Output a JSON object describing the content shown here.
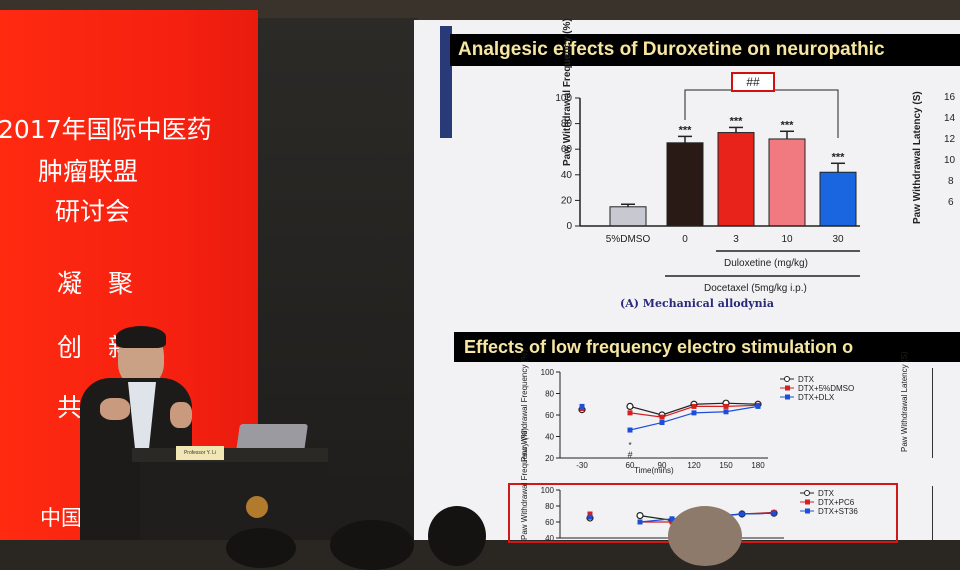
{
  "banner": {
    "line1": "2017年国际中医药",
    "line2": "肿瘤联盟",
    "line3": "研讨会",
    "chars": [
      "凝",
      "聚",
      "创",
      "新",
      "共"
    ],
    "bottom": "中国"
  },
  "podium": {
    "nameplate": "Professor Y. Li"
  },
  "slide": {
    "title1": "Analgesic effects of Duroxetine on neuropathic",
    "title2": "Effects of low frequency electro stimulation o",
    "panel_a": "(A) Mechanical allodynia",
    "sig_bracket": "##",
    "dose_label": "Duloxetine (mg/kg)",
    "treatment_label": "Docetaxel (5mg/kg i.p.)",
    "right_ylabel": "Paw Withdrawal Latency (S)",
    "right_ticks": [
      "16",
      "14",
      "12",
      "10",
      "8",
      "6"
    ],
    "line_top_legend": [
      "DTX",
      "DTX+5%DMSO",
      "DTX+DLX"
    ],
    "line_bottom_legend": [
      "DTX",
      "DTX+PC6",
      "DTX+ST36"
    ]
  },
  "chart_data": [
    {
      "type": "bar",
      "ylabel": "Paw Withdrawal Frequency (%)",
      "ylim": [
        0,
        100
      ],
      "yticks": [
        0,
        20,
        40,
        60,
        80,
        100
      ],
      "categories": [
        "5%DMSO",
        "0",
        "3",
        "10",
        "30"
      ],
      "values": [
        15,
        65,
        73,
        68,
        42
      ],
      "errors": [
        2,
        5,
        4,
        6,
        7
      ],
      "annotations": [
        "",
        "***",
        "***",
        "***",
        "***"
      ],
      "colors": [
        "#c8c8d0",
        "#2a1a16",
        "#e8231c",
        "#f07a80",
        "#1a66e0"
      ]
    },
    {
      "type": "line",
      "ylabel": "Paw Withdrawal Frequency (%)",
      "xlabel": "Time(mins)",
      "ylim": [
        20,
        100
      ],
      "yticks": [
        20,
        40,
        60,
        80,
        100
      ],
      "x": [
        "-30",
        "60",
        "90",
        "120",
        "150",
        "180"
      ],
      "series": [
        {
          "name": "DTX",
          "values": [
            65,
            68,
            60,
            70,
            71,
            70
          ]
        },
        {
          "name": "DTX+5%DMSO",
          "values": [
            66,
            62,
            58,
            68,
            68,
            69
          ]
        },
        {
          "name": "DTX+DLX",
          "values": [
            68,
            46,
            53,
            62,
            63,
            68
          ]
        }
      ],
      "annotations": [
        "*",
        "#"
      ]
    },
    {
      "type": "line",
      "ylabel": "Paw Withdrawal Frequency (%)",
      "ylim": [
        40,
        100
      ],
      "yticks": [
        40,
        60,
        80,
        100
      ],
      "series": [
        {
          "name": "DTX",
          "values": [
            65,
            68,
            62,
            70,
            71
          ]
        },
        {
          "name": "DTX+PC6",
          "values": [
            70,
            60,
            60,
            70,
            72
          ]
        },
        {
          "name": "DTX+ST36",
          "values": [
            66,
            60,
            64,
            70,
            71
          ]
        }
      ]
    }
  ]
}
